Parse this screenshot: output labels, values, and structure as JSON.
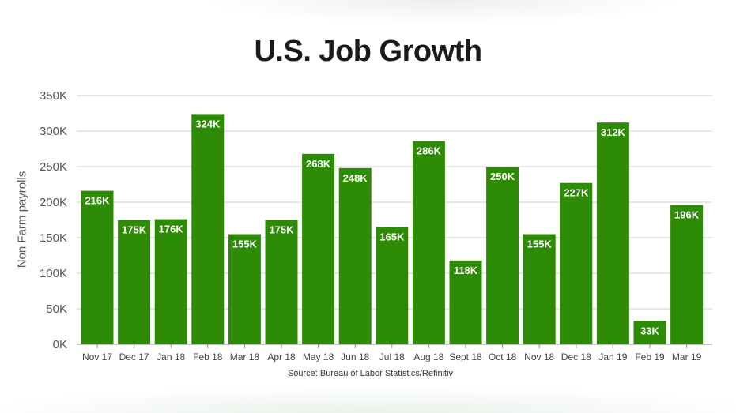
{
  "chart_data": {
    "type": "bar",
    "title": "U.S. Job Growth",
    "ylabel": "Non Farm payrolls",
    "xlabel": "",
    "source": "Source: Bureau of Labor Statistics/Refinitiv",
    "categories": [
      "Nov 17",
      "Dec 17",
      "Jan 18",
      "Feb 18",
      "Mar 18",
      "Apr 18",
      "May 18",
      "Jun 18",
      "Jul 18",
      "Aug 18",
      "Sept 18",
      "Oct 18",
      "Nov 18",
      "Dec 18",
      "Jan 19",
      "Feb 19",
      "Mar 19"
    ],
    "values": [
      216,
      175,
      176,
      324,
      155,
      175,
      268,
      248,
      165,
      286,
      118,
      250,
      155,
      227,
      312,
      33,
      196
    ],
    "value_labels": [
      "216K",
      "175K",
      "176K",
      "324K",
      "155K",
      "175K",
      "268K",
      "248K",
      "165K",
      "286K",
      "118K",
      "250K",
      "155K",
      "227K",
      "312K",
      "33K",
      "196K"
    ],
    "yticks": [
      0,
      50,
      100,
      150,
      200,
      250,
      300,
      350
    ],
    "ytick_labels": [
      "0K",
      "50K",
      "100K",
      "150K",
      "200K",
      "250K",
      "300K",
      "350K"
    ],
    "ylim": [
      0,
      350
    ],
    "grid": true,
    "colors": {
      "bar": "#2e8b05",
      "grid": "#d0d0d0",
      "axis": "#888888",
      "text": "#444444",
      "label": "#ffffff"
    }
  }
}
